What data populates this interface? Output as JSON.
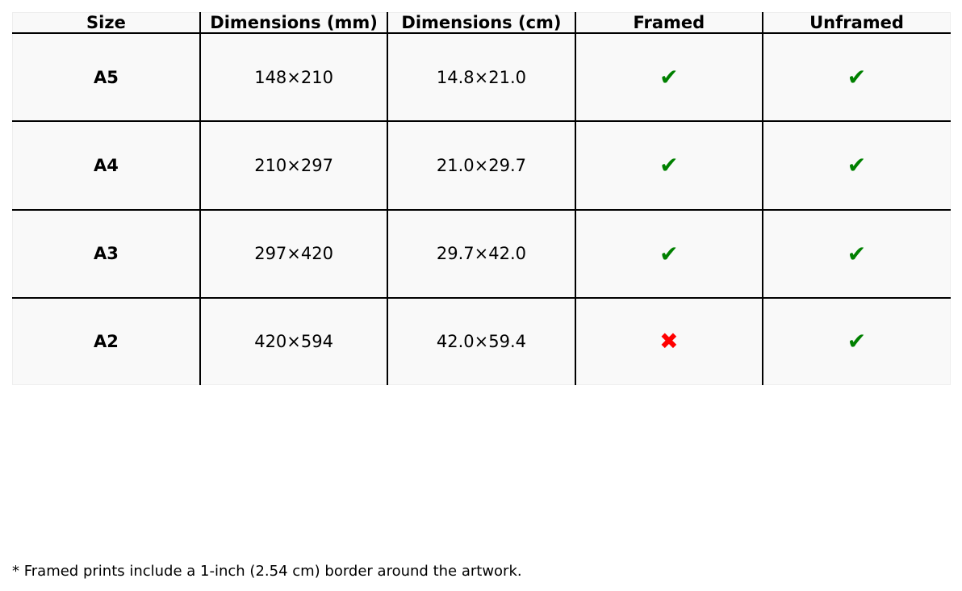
{
  "table": {
    "headers": [
      "Size",
      "Dimensions (mm)",
      "Dimensions (cm)",
      "Framed",
      "Unframed"
    ],
    "rows": [
      {
        "size": "A5",
        "mm": "148×210",
        "cm": "14.8×21.0",
        "framed": "✔",
        "unframed": "✔",
        "framed_ok": true,
        "unframed_ok": true
      },
      {
        "size": "A4",
        "mm": "210×297",
        "cm": "21.0×29.7",
        "framed": "✔",
        "unframed": "✔",
        "framed_ok": true,
        "unframed_ok": true
      },
      {
        "size": "A3",
        "mm": "297×420",
        "cm": "29.7×42.0",
        "framed": "✔",
        "unframed": "✔",
        "framed_ok": true,
        "unframed_ok": true
      },
      {
        "size": "A2",
        "mm": "420×594",
        "cm": "42.0×59.4",
        "framed": "✖",
        "unframed": "✔",
        "framed_ok": false,
        "unframed_ok": true
      }
    ]
  },
  "colors": {
    "check": "#008000",
    "cross": "#ff0000",
    "cell_bg": "#f9f9f9"
  },
  "footnote": "* Framed prints include a 1-inch (2.54 cm) border around the artwork."
}
